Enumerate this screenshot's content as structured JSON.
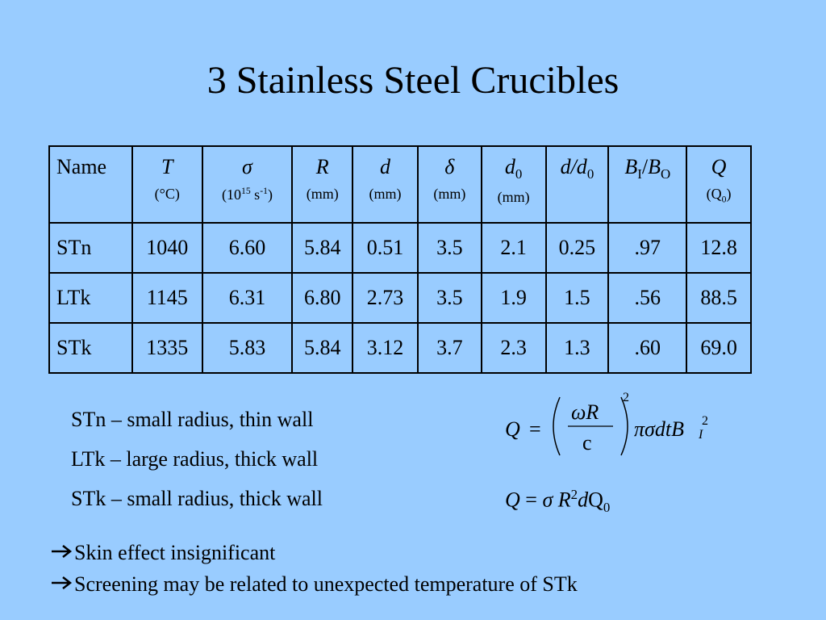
{
  "title": "3 Stainless Steel Crucibles",
  "table": {
    "header": [
      {
        "name": "Name"
      },
      {
        "symbol": "T",
        "unit": "(°C)"
      },
      {
        "symbol": "σ",
        "unit": [
          "(10",
          "15",
          " s",
          "-1",
          ")"
        ]
      },
      {
        "symbol": "R",
        "unit": "(mm)"
      },
      {
        "symbol": "d",
        "unit": "(mm)"
      },
      {
        "symbol": "δ",
        "unit": "(mm)"
      },
      {
        "symbol": "d",
        "sub": "0",
        "unit": "(mm)"
      },
      {
        "symbol": "d/d",
        "sub": "0"
      },
      {
        "symbol": [
          "B",
          "I",
          "/",
          "B",
          "O"
        ]
      },
      {
        "symbol": "Q",
        "unit": [
          "(Q",
          "0",
          ")"
        ]
      }
    ],
    "rows": [
      [
        "STn",
        "1040",
        "6.60",
        "5.84",
        "0.51",
        "3.5",
        "2.1",
        "0.25",
        ".97",
        "12.8"
      ],
      [
        "LTk",
        "1145",
        "6.31",
        "6.80",
        "2.73",
        "3.5",
        "1.9",
        "1.5",
        ".56",
        "88.5"
      ],
      [
        "STk",
        "1335",
        "5.83",
        "5.84",
        "3.12",
        "3.7",
        "2.3",
        "1.3",
        ".60",
        "69.0"
      ]
    ]
  },
  "notes": [
    "STn – small radius, thin wall",
    "LTk – large radius, thick wall",
    "STk – small radius, thick wall"
  ],
  "formula_1": {
    "lhs": "Q",
    "eq": "=",
    "num": "ωR",
    "den": "c",
    "power": "2",
    "rest": "πσdtB",
    "sup": "2",
    "sub": "I"
  },
  "formula_2": {
    "lhs": "Q",
    "eq": "=",
    "sigma": "σ",
    "r": "R",
    "r_power": "2",
    "d": "d",
    "q": "Q",
    "q_sub": "0"
  },
  "bullets": [
    "Skin effect insignificant",
    "Screening may be related to unexpected temperature of STk"
  ]
}
